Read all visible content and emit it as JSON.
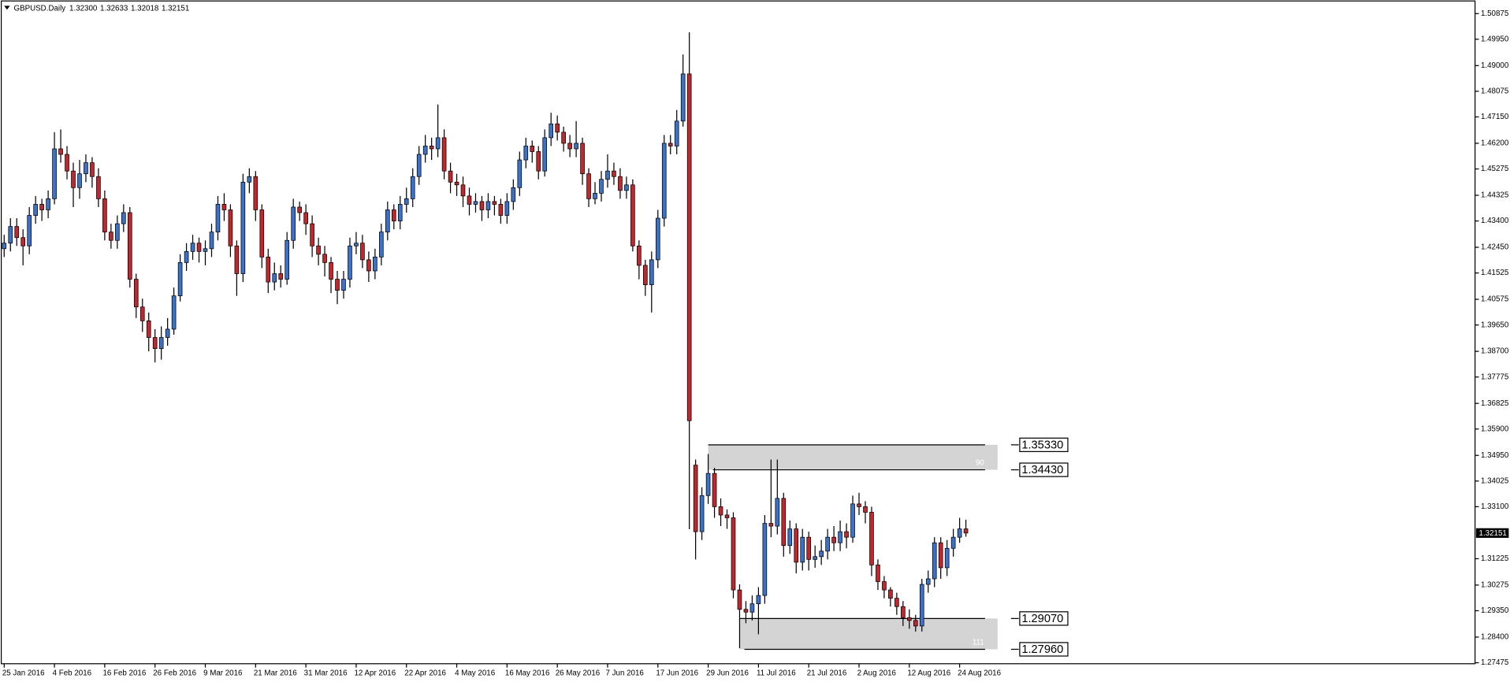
{
  "chart_data": {
    "type": "candlestick",
    "title": "GBPUSD.Daily",
    "title_values": [
      "1.32300",
      "1.32633",
      "1.32018",
      "1.32151"
    ],
    "up_color": "#3a73c9",
    "down_color": "#c1272d",
    "ylim": [
      1.2744,
      1.5133
    ],
    "yticks": [
      1.50875,
      {
        "value": 1.4995,
        "label": "1.49950"
      },
      {
        "value": 1.49,
        "label": "1.49000"
      },
      1.48075,
      {
        "value": 1.4715,
        "label": "1.47150"
      },
      {
        "value": 1.462,
        "label": "1.46200"
      },
      1.45275,
      1.44325,
      {
        "value": 1.434,
        "label": "1.43400"
      },
      {
        "value": 1.4245,
        "label": "1.42450"
      },
      1.41525,
      1.40575,
      {
        "value": 1.3965,
        "label": "1.39650"
      },
      {
        "value": 1.387,
        "label": "1.38700"
      },
      1.37775,
      1.36825,
      {
        "value": 1.359,
        "label": "1.35900"
      },
      {
        "value": 1.3495,
        "label": "1.34950"
      },
      1.34025,
      {
        "value": 1.331,
        "label": "1.33100"
      },
      1.31225,
      1.30275,
      {
        "value": 1.2935,
        "label": "1.29350"
      },
      {
        "value": 1.284,
        "label": "1.28400"
      },
      1.27475
    ],
    "last_price": 1.32151,
    "categories": [
      "25 Jan 2016",
      null,
      null,
      null,
      null,
      null,
      null,
      null,
      "4 Feb 2016",
      null,
      null,
      null,
      null,
      null,
      null,
      null,
      "16 Feb 2016",
      null,
      null,
      null,
      null,
      null,
      null,
      null,
      "26 Feb 2016",
      null,
      null,
      null,
      null,
      null,
      null,
      null,
      "9 Mar 2016",
      null,
      null,
      null,
      null,
      null,
      null,
      null,
      "21 Mar 2016",
      null,
      null,
      null,
      null,
      null,
      null,
      null,
      "31 Mar 2016",
      null,
      null,
      null,
      null,
      null,
      null,
      null,
      "12 Apr 2016",
      null,
      null,
      null,
      null,
      null,
      null,
      null,
      "22 Apr 2016",
      null,
      null,
      null,
      null,
      null,
      null,
      null,
      "4 May 2016",
      null,
      null,
      null,
      null,
      null,
      null,
      null,
      "16 May 2016",
      null,
      null,
      null,
      null,
      null,
      null,
      null,
      "26 May 2016",
      null,
      null,
      null,
      null,
      null,
      null,
      null,
      "7 Jun 2016",
      null,
      null,
      null,
      null,
      null,
      null,
      null,
      "17 Jun 2016",
      null,
      null,
      null,
      null,
      null,
      null,
      null,
      "29 Jun 2016",
      null,
      null,
      null,
      null,
      null,
      null,
      null,
      "11 Jul 2016",
      null,
      null,
      null,
      null,
      null,
      null,
      null,
      "21 Jul 2016",
      null,
      null,
      null,
      null,
      null,
      null,
      null,
      "2 Aug 2016",
      null,
      null,
      null,
      null,
      null,
      null,
      null,
      "12 Aug 2016",
      null,
      null,
      null,
      null,
      null,
      null,
      null,
      "24 Aug 2016",
      null
    ],
    "candles": [
      [
        1.424,
        1.429,
        1.421,
        1.426
      ],
      [
        1.426,
        1.435,
        1.423,
        1.432
      ],
      [
        1.432,
        1.435,
        1.425,
        1.428
      ],
      [
        1.428,
        1.431,
        1.418,
        1.425
      ],
      [
        1.425,
        1.439,
        1.422,
        1.436
      ],
      [
        1.436,
        1.443,
        1.433,
        1.44
      ],
      [
        1.44,
        1.442,
        1.434,
        1.438
      ],
      [
        1.438,
        1.445,
        1.435,
        1.442
      ],
      [
        1.442,
        1.466,
        1.44,
        1.46
      ],
      [
        1.46,
        1.467,
        1.455,
        1.458
      ],
      [
        1.458,
        1.461,
        1.449,
        1.452
      ],
      [
        1.452,
        1.455,
        1.439,
        1.446
      ],
      [
        1.446,
        1.456,
        1.442,
        1.451
      ],
      [
        1.451,
        1.458,
        1.448,
        1.455
      ],
      [
        1.455,
        1.457,
        1.446,
        1.45
      ],
      [
        1.45,
        1.453,
        1.439,
        1.442
      ],
      [
        1.442,
        1.445,
        1.427,
        1.43
      ],
      [
        1.43,
        1.433,
        1.424,
        1.427
      ],
      [
        1.427,
        1.436,
        1.424,
        1.433
      ],
      [
        1.433,
        1.44,
        1.43,
        1.437
      ],
      [
        1.437,
        1.439,
        1.41,
        1.413
      ],
      [
        1.413,
        1.415,
        1.399,
        1.403
      ],
      [
        1.403,
        1.406,
        1.394,
        1.398
      ],
      [
        1.398,
        1.401,
        1.387,
        1.392
      ],
      [
        1.392,
        1.395,
        1.383,
        1.388
      ],
      [
        1.388,
        1.396,
        1.384,
        1.392
      ],
      [
        1.392,
        1.399,
        1.389,
        1.395
      ],
      [
        1.395,
        1.41,
        1.393,
        1.407
      ],
      [
        1.407,
        1.422,
        1.405,
        1.419
      ],
      [
        1.419,
        1.426,
        1.416,
        1.423
      ],
      [
        1.423,
        1.429,
        1.42,
        1.426
      ],
      [
        1.426,
        1.428,
        1.419,
        1.423
      ],
      [
        1.423,
        1.427,
        1.418,
        1.424
      ],
      [
        1.424,
        1.433,
        1.421,
        1.43
      ],
      [
        1.43,
        1.443,
        1.427,
        1.44
      ],
      [
        1.44,
        1.444,
        1.434,
        1.438
      ],
      [
        1.438,
        1.44,
        1.421,
        1.425
      ],
      [
        1.425,
        1.427,
        1.407,
        1.415
      ],
      [
        1.415,
        1.451,
        1.412,
        1.448
      ],
      [
        1.448,
        1.453,
        1.444,
        1.45
      ],
      [
        1.45,
        1.452,
        1.434,
        1.438
      ],
      [
        1.438,
        1.44,
        1.417,
        1.421
      ],
      [
        1.421,
        1.424,
        1.408,
        1.412
      ],
      [
        1.412,
        1.419,
        1.409,
        1.415
      ],
      [
        1.415,
        1.418,
        1.41,
        1.413
      ],
      [
        1.413,
        1.43,
        1.411,
        1.427
      ],
      [
        1.427,
        1.442,
        1.424,
        1.439
      ],
      [
        1.439,
        1.441,
        1.434,
        1.437
      ],
      [
        1.437,
        1.44,
        1.429,
        1.433
      ],
      [
        1.433,
        1.436,
        1.421,
        1.425
      ],
      [
        1.425,
        1.428,
        1.418,
        1.422
      ],
      [
        1.422,
        1.425,
        1.414,
        1.419
      ],
      [
        1.419,
        1.421,
        1.408,
        1.413
      ],
      [
        1.413,
        1.416,
        1.404,
        1.409
      ],
      [
        1.409,
        1.416,
        1.406,
        1.413
      ],
      [
        1.413,
        1.428,
        1.41,
        1.425
      ],
      [
        1.425,
        1.43,
        1.422,
        1.426
      ],
      [
        1.426,
        1.429,
        1.417,
        1.42
      ],
      [
        1.42,
        1.423,
        1.412,
        1.416
      ],
      [
        1.416,
        1.424,
        1.413,
        1.421
      ],
      [
        1.421,
        1.433,
        1.418,
        1.43
      ],
      [
        1.43,
        1.441,
        1.427,
        1.438
      ],
      [
        1.438,
        1.44,
        1.431,
        1.434
      ],
      [
        1.434,
        1.443,
        1.431,
        1.44
      ],
      [
        1.44,
        1.446,
        1.437,
        1.442
      ],
      [
        1.442,
        1.453,
        1.439,
        1.45
      ],
      [
        1.45,
        1.461,
        1.447,
        1.458
      ],
      [
        1.458,
        1.465,
        1.455,
        1.461
      ],
      [
        1.461,
        1.464,
        1.456,
        1.46
      ],
      [
        1.46,
        1.476,
        1.457,
        1.464
      ],
      [
        1.464,
        1.467,
        1.449,
        1.452
      ],
      [
        1.452,
        1.455,
        1.444,
        1.448
      ],
      [
        1.448,
        1.451,
        1.443,
        1.447
      ],
      [
        1.447,
        1.45,
        1.439,
        1.443
      ],
      [
        1.443,
        1.446,
        1.436,
        1.44
      ],
      [
        1.44,
        1.444,
        1.437,
        1.441
      ],
      [
        1.441,
        1.443,
        1.434,
        1.438
      ],
      [
        1.438,
        1.444,
        1.435,
        1.441
      ],
      [
        1.441,
        1.443,
        1.436,
        1.44
      ],
      [
        1.44,
        1.442,
        1.433,
        1.436
      ],
      [
        1.436,
        1.444,
        1.433,
        1.441
      ],
      [
        1.441,
        1.449,
        1.438,
        1.446
      ],
      [
        1.446,
        1.459,
        1.443,
        1.456
      ],
      [
        1.456,
        1.464,
        1.453,
        1.461
      ],
      [
        1.461,
        1.463,
        1.455,
        1.459
      ],
      [
        1.459,
        1.461,
        1.449,
        1.452
      ],
      [
        1.452,
        1.467,
        1.45,
        1.464
      ],
      [
        1.464,
        1.473,
        1.461,
        1.469
      ],
      [
        1.469,
        1.472,
        1.463,
        1.466
      ],
      [
        1.466,
        1.468,
        1.459,
        1.462
      ],
      [
        1.462,
        1.465,
        1.457,
        1.46
      ],
      [
        1.46,
        1.47,
        1.457,
        1.462
      ],
      [
        1.462,
        1.464,
        1.447,
        1.451
      ],
      [
        1.451,
        1.453,
        1.439,
        1.442
      ],
      [
        1.442,
        1.448,
        1.44,
        1.444
      ],
      [
        1.444,
        1.452,
        1.441,
        1.449
      ],
      [
        1.449,
        1.458,
        1.446,
        1.452
      ],
      [
        1.452,
        1.455,
        1.447,
        1.45
      ],
      [
        1.45,
        1.453,
        1.442,
        1.445
      ],
      [
        1.445,
        1.45,
        1.442,
        1.447
      ],
      [
        1.447,
        1.449,
        1.423,
        1.425
      ],
      [
        1.425,
        1.427,
        1.413,
        1.418
      ],
      [
        1.418,
        1.42,
        1.407,
        1.411
      ],
      [
        1.411,
        1.423,
        1.401,
        1.42
      ],
      [
        1.42,
        1.438,
        1.417,
        1.435
      ],
      [
        1.435,
        1.465,
        1.432,
        1.462
      ],
      [
        1.462,
        1.465,
        1.458,
        1.461
      ],
      [
        1.461,
        1.474,
        1.458,
        1.47
      ],
      [
        1.47,
        1.494,
        1.468,
        1.487
      ],
      [
        1.487,
        1.502,
        1.3229,
        1.362
      ],
      [
        1.346,
        1.348,
        1.312,
        1.322
      ],
      [
        1.322,
        1.338,
        1.319,
        1.335
      ],
      [
        1.335,
        1.35,
        1.332,
        1.343
      ],
      [
        1.343,
        1.345,
        1.327,
        1.331
      ],
      [
        1.331,
        1.334,
        1.324,
        1.328
      ],
      [
        1.328,
        1.33,
        1.323,
        1.327
      ],
      [
        1.327,
        1.329,
        1.298,
        1.301
      ],
      [
        1.301,
        1.303,
        1.28,
        1.294
      ],
      [
        1.294,
        1.297,
        1.289,
        1.293
      ],
      [
        1.293,
        1.299,
        1.29,
        1.296
      ],
      [
        1.296,
        1.302,
        1.285,
        1.299
      ],
      [
        1.299,
        1.328,
        1.296,
        1.325
      ],
      [
        1.325,
        1.348,
        1.32,
        1.324
      ],
      [
        1.324,
        1.348,
        1.321,
        1.334
      ],
      [
        1.334,
        1.336,
        1.313,
        1.317
      ],
      [
        1.317,
        1.326,
        1.314,
        1.323
      ],
      [
        1.323,
        1.325,
        1.307,
        1.311
      ],
      [
        1.311,
        1.323,
        1.308,
        1.32
      ],
      [
        1.32,
        1.322,
        1.308,
        1.312
      ],
      [
        1.312,
        1.317,
        1.309,
        1.313
      ],
      [
        1.313,
        1.319,
        1.31,
        1.315
      ],
      [
        1.315,
        1.323,
        1.312,
        1.32
      ],
      [
        1.32,
        1.324,
        1.315,
        1.318
      ],
      [
        1.318,
        1.326,
        1.315,
        1.322
      ],
      [
        1.322,
        1.325,
        1.316,
        1.32
      ],
      [
        1.32,
        1.335,
        1.318,
        1.332
      ],
      [
        1.332,
        1.336,
        1.328,
        1.331
      ],
      [
        1.331,
        1.333,
        1.325,
        1.329
      ],
      [
        1.329,
        1.331,
        1.306,
        1.31
      ],
      [
        1.31,
        1.312,
        1.301,
        1.304
      ],
      [
        1.304,
        1.306,
        1.298,
        1.301
      ],
      [
        1.301,
        1.302,
        1.295,
        1.298
      ],
      [
        1.298,
        1.3,
        1.292,
        1.295
      ],
      [
        1.295,
        1.297,
        1.288,
        1.291
      ],
      [
        1.291,
        1.294,
        1.287,
        1.29
      ],
      [
        1.29,
        1.292,
        1.286,
        1.288
      ],
      [
        1.288,
        1.305,
        1.286,
        1.303
      ],
      [
        1.303,
        1.308,
        1.3,
        1.305
      ],
      [
        1.305,
        1.32,
        1.302,
        1.318
      ],
      [
        1.318,
        1.32,
        1.305,
        1.309
      ],
      [
        1.309,
        1.319,
        1.306,
        1.316
      ],
      [
        1.316,
        1.323,
        1.313,
        1.32
      ],
      [
        1.32,
        1.327,
        1.318,
        1.323
      ],
      [
        1.323,
        1.32633,
        1.32018,
        1.32151
      ]
    ],
    "zones": [
      {
        "label": "90",
        "top": {
          "value": 1.3533,
          "label": "1.35330"
        },
        "bottom": {
          "value": 1.3443,
          "label": "1.34430"
        }
      },
      {
        "label": "111",
        "top": {
          "value": 1.2907,
          "label": "1.29070"
        },
        "bottom": {
          "value": 1.2796,
          "label": "1.27960"
        }
      }
    ]
  }
}
